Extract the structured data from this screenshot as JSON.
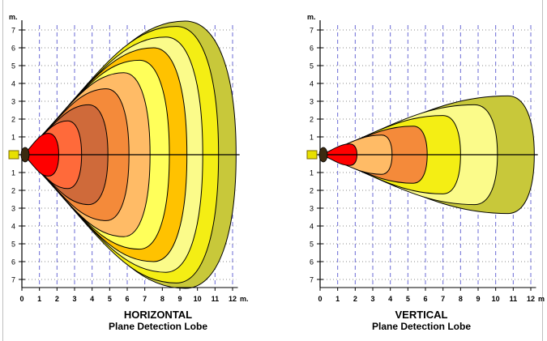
{
  "colors": {
    "grid_major": "#6b6bd6",
    "grid_minor": "#8a8a8a",
    "axis": "#000000",
    "sensor": "#e8e000",
    "sensor_stroke": "#7a6a00",
    "zone_fills": [
      "#c8c83a",
      "#f4ee14",
      "#fbfb8a",
      "#ffc200",
      "#ffff5a",
      "#ffbb66",
      "#f48a3a",
      "#cf6a3a",
      "#ff6a3a",
      "#ff0000"
    ]
  },
  "chart_data": [
    {
      "type": "area",
      "id": "horizontal",
      "title": "HORIZONTAL",
      "subtitle": "Plane Detection Lobe",
      "y_unit": "m.",
      "x_unit": "m.",
      "xlim": [
        0,
        12
      ],
      "ylim": [
        -7,
        7
      ],
      "xticks": [
        "0",
        "1",
        "2",
        "3",
        "4",
        "5",
        "6",
        "7",
        "8",
        "9",
        "10",
        "11",
        "12"
      ],
      "yticks": [
        "7",
        "6",
        "5",
        "4",
        "3",
        "2",
        "1",
        "1",
        "2",
        "3",
        "4",
        "5",
        "6",
        "7"
      ],
      "zones": [
        {
          "reach": 12.2,
          "half_width": 7.5,
          "peak_x": 9.3
        },
        {
          "reach": 11.2,
          "half_width": 7.2,
          "peak_x": 8.8
        },
        {
          "reach": 10.3,
          "half_width": 6.6,
          "peak_x": 8.2
        },
        {
          "reach": 9.4,
          "half_width": 6.0,
          "peak_x": 7.5
        },
        {
          "reach": 8.4,
          "half_width": 5.3,
          "peak_x": 6.7
        },
        {
          "reach": 7.3,
          "half_width": 4.6,
          "peak_x": 5.8
        },
        {
          "reach": 6.1,
          "half_width": 3.7,
          "peak_x": 4.8
        },
        {
          "reach": 4.9,
          "half_width": 2.8,
          "peak_x": 3.8
        },
        {
          "reach": 3.4,
          "half_width": 1.9,
          "peak_x": 2.6
        },
        {
          "reach": 2.1,
          "half_width": 1.2,
          "peak_x": 1.5
        }
      ]
    },
    {
      "type": "area",
      "id": "vertical",
      "title": "VERTICAL",
      "subtitle": "Plane Detection Lobe",
      "y_unit": "m.",
      "x_unit": "m",
      "xlim": [
        0,
        12
      ],
      "ylim": [
        -7,
        7
      ],
      "xticks": [
        "0",
        "1",
        "2",
        "3",
        "4",
        "5",
        "6",
        "7",
        "8",
        "9",
        "10",
        "11",
        "12"
      ],
      "yticks": [
        "7",
        "6",
        "5",
        "4",
        "3",
        "2",
        "1",
        "1",
        "2",
        "3",
        "4",
        "5",
        "6",
        "7"
      ],
      "zones": [
        {
          "reach": 12.2,
          "half_width": 3.3,
          "peak_x": 10.7
        },
        {
          "reach": 10.1,
          "half_width": 2.8,
          "peak_x": 8.8
        },
        {
          "reach": 8.0,
          "half_width": 2.2,
          "peak_x": 7.0
        },
        {
          "reach": 6.1,
          "half_width": 1.6,
          "peak_x": 5.3
        },
        {
          "reach": 4.1,
          "half_width": 1.1,
          "peak_x": 3.5
        },
        {
          "reach": 2.1,
          "half_width": 0.6,
          "peak_x": 1.7
        }
      ],
      "zone_fill_indices": [
        0,
        2,
        1,
        6,
        5,
        9
      ]
    }
  ]
}
